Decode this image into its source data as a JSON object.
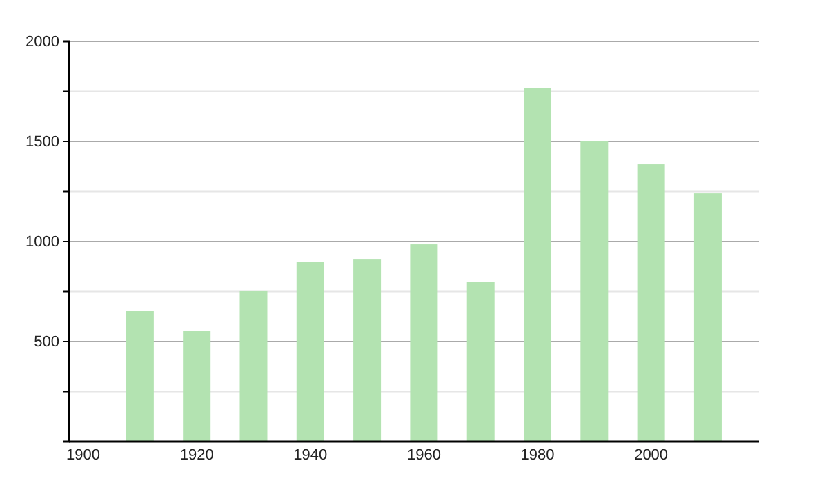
{
  "chart_data": {
    "type": "bar",
    "x": [
      1910,
      1920,
      1930,
      1940,
      1950,
      1960,
      1970,
      1980,
      1990,
      2000,
      2010
    ],
    "values": [
      655,
      552,
      752,
      897,
      910,
      986,
      800,
      1766,
      1503,
      1386,
      1241
    ],
    "color": "#b3e3b1",
    "xlim": [
      1897.5,
      2019
    ],
    "xticks": [
      1900,
      1920,
      1940,
      1960,
      1980,
      2000
    ],
    "ylim": [
      0,
      2000
    ],
    "yticks": [
      {
        "value": 250,
        "label": null
      },
      500,
      {
        "value": 750,
        "label": null
      },
      1000,
      {
        "value": 1250,
        "label": null
      },
      1500,
      {
        "value": 1750,
        "label": null
      },
      2000
    ],
    "grid": "y"
  }
}
